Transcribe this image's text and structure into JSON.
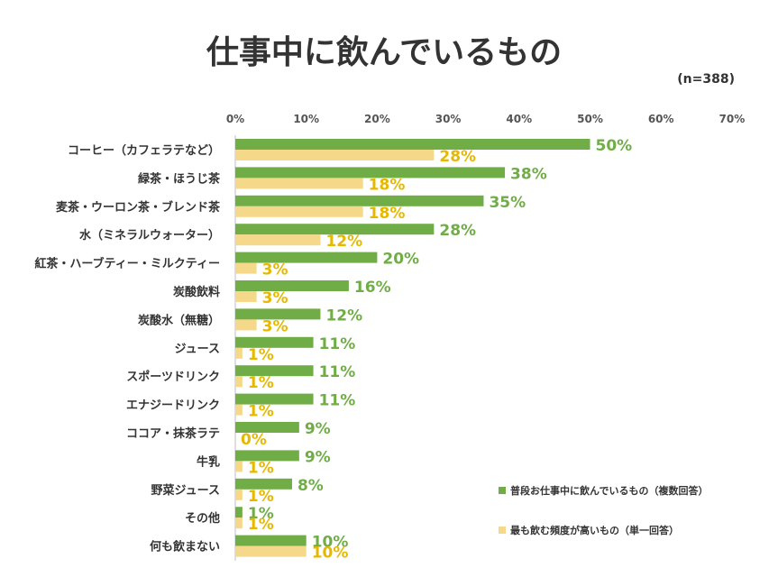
{
  "chart_data": {
    "type": "bar",
    "orientation": "horizontal",
    "title": "仕事中に飲んでいるもの",
    "sample_note": "(n=388)",
    "x_ticks": [
      "0%",
      "10%",
      "20%",
      "30%",
      "40%",
      "50%",
      "60%",
      "70%"
    ],
    "xlim": [
      0,
      70
    ],
    "categories": [
      "コーヒー（カフェラテなど）",
      "緑茶・ほうじ茶",
      "麦茶・ウーロン茶・ブレンド茶",
      "水（ミネラルウォーター）",
      "紅茶・ハーブティー・ミルクティー",
      "炭酸飲料",
      "炭酸水（無糖）",
      "ジュース",
      "スポーツドリンク",
      "エナジードリンク",
      "ココア・抹茶ラテ",
      "牛乳",
      "野菜ジュース",
      "その他",
      "何も飲まない"
    ],
    "series": [
      {
        "name": "普段お仕事中に飲んでいるもの（複数回答）",
        "color": "#70ad47",
        "label_color": "#70ad47",
        "values": [
          50,
          38,
          35,
          28,
          20,
          16,
          12,
          11,
          11,
          11,
          9,
          9,
          8,
          1,
          10
        ],
        "labels": [
          "50%",
          "38%",
          "35%",
          "28%",
          "20%",
          "16%",
          "12%",
          "11%",
          "11%",
          "11%",
          "9%",
          "9%",
          "8%",
          "1%",
          "10%"
        ]
      },
      {
        "name": "最も飲む頻度が高いもの（単一回答）",
        "color": "#f5d889",
        "label_color": "#e6b800",
        "values": [
          28,
          18,
          18,
          12,
          3,
          3,
          3,
          1,
          1,
          1,
          0,
          1,
          1,
          1,
          10
        ],
        "labels": [
          "28%",
          "18%",
          "18%",
          "12%",
          "3%",
          "3%",
          "3%",
          "1%",
          "1%",
          "1%",
          "0%",
          "1%",
          "1%",
          "1%",
          "10%"
        ]
      }
    ],
    "legend_position": "bottom-right",
    "grid": false
  }
}
